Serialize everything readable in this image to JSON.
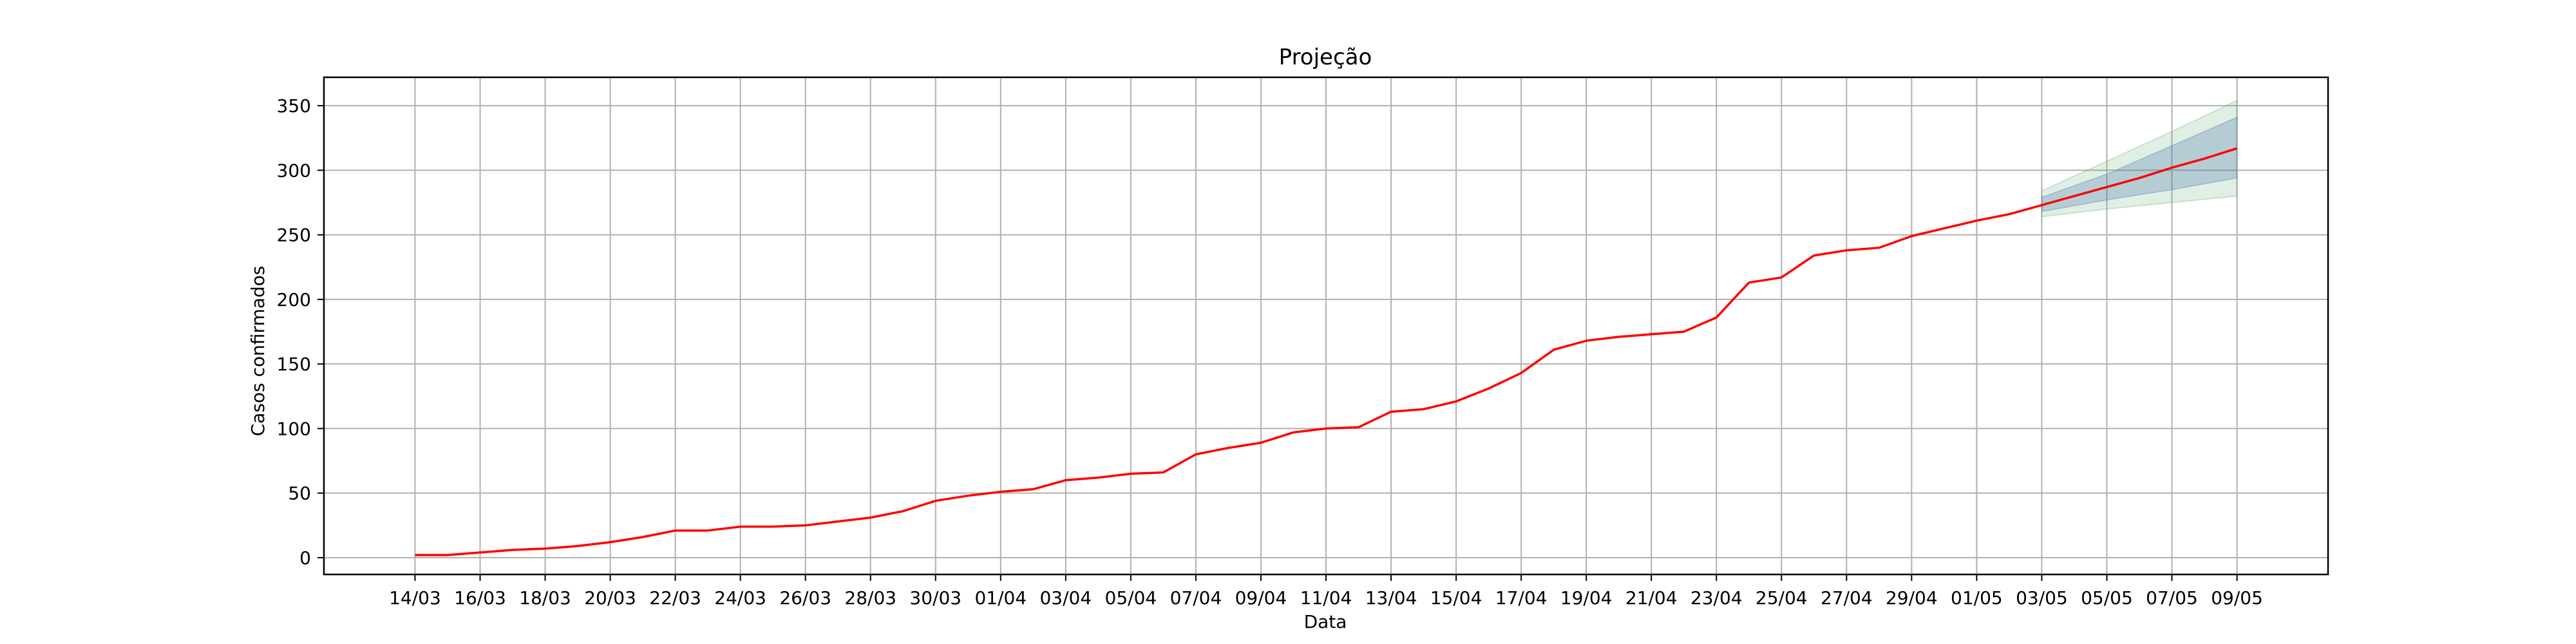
{
  "chart_data": {
    "type": "line",
    "title": "Projeção",
    "xlabel": "Data",
    "ylabel": "Casos confirmados",
    "ylim": [
      -13,
      372
    ],
    "yticks": [
      0,
      50,
      100,
      150,
      200,
      250,
      300,
      350
    ],
    "xticks": [
      "14/03",
      "16/03",
      "18/03",
      "20/03",
      "22/03",
      "24/03",
      "26/03",
      "28/03",
      "30/03",
      "01/04",
      "03/04",
      "05/04",
      "07/04",
      "09/04",
      "11/04",
      "13/04",
      "15/04",
      "17/04",
      "19/04",
      "21/04",
      "23/04",
      "25/04",
      "27/04",
      "29/04",
      "01/05",
      "03/05",
      "05/05",
      "07/05",
      "09/05"
    ],
    "grid": true,
    "colors": {
      "line": "#ff0000",
      "band_inner": "#4c72b0",
      "band_outer": "#55a868",
      "grid": "#b0b0b0"
    },
    "series": [
      {
        "x": [
          "14/03",
          "15/03",
          "16/03",
          "17/03",
          "18/03",
          "19/03",
          "20/03",
          "21/03",
          "22/03",
          "23/03",
          "24/03",
          "25/03",
          "26/03",
          "27/03",
          "28/03",
          "29/03",
          "30/03",
          "31/03",
          "01/04",
          "02/04",
          "03/04",
          "04/04",
          "05/04",
          "06/04",
          "07/04",
          "08/04",
          "09/04",
          "10/04",
          "11/04",
          "12/04",
          "13/04",
          "14/04",
          "15/04",
          "16/04",
          "17/04",
          "18/04",
          "19/04",
          "20/04",
          "21/04",
          "22/04",
          "23/04",
          "24/04",
          "25/04",
          "26/04",
          "27/04",
          "28/04",
          "29/04",
          "30/04",
          "01/05",
          "02/05",
          "03/05",
          "04/05",
          "05/05",
          "06/05",
          "07/05",
          "08/05",
          "09/05"
        ],
        "values": [
          2,
          2,
          4,
          6,
          7,
          9,
          12,
          16,
          21,
          21,
          24,
          24,
          25,
          28,
          31,
          36,
          44,
          48,
          51,
          53,
          60,
          62,
          65,
          66,
          80,
          85,
          89,
          97,
          100,
          101,
          113,
          115,
          121,
          131,
          143,
          161,
          168,
          171,
          173,
          175,
          186,
          213,
          217,
          234,
          238,
          240,
          249,
          255,
          261,
          266,
          273,
          280,
          287,
          294,
          302,
          309,
          317
        ]
      }
    ],
    "bands": [
      {
        "x": [
          "03/05",
          "05/05",
          "07/05",
          "09/05"
        ],
        "lower": [
          264,
          270,
          275,
          280
        ],
        "upper": [
          284,
          307,
          330,
          354
        ]
      },
      {
        "x": [
          "03/05",
          "05/05",
          "07/05",
          "09/05"
        ],
        "lower": [
          268,
          277,
          285,
          294
        ],
        "upper": [
          279,
          297,
          319,
          341
        ]
      }
    ]
  }
}
